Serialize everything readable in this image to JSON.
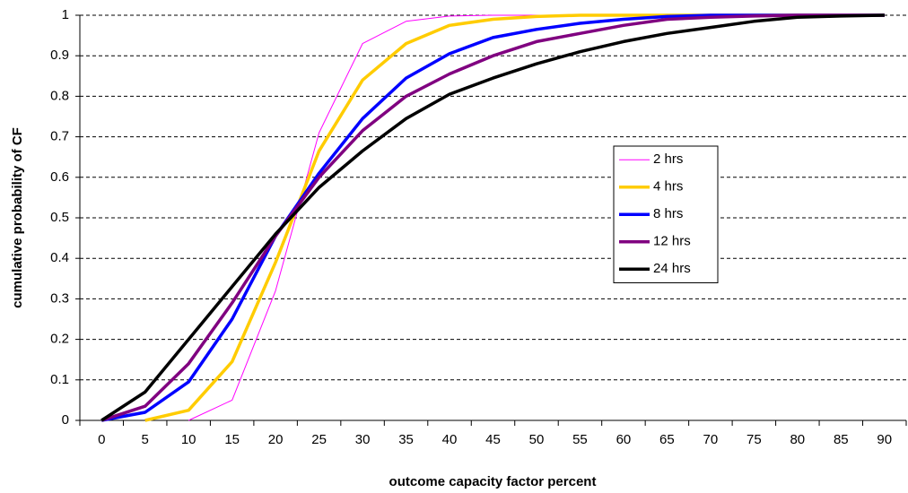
{
  "chart_data": {
    "type": "line",
    "x_label": "outcome capacity factor percent",
    "y_label": "cumulative probability of CF",
    "categories": [
      "0",
      "5",
      "10",
      "15",
      "20",
      "25",
      "30",
      "35",
      "40",
      "45",
      "50",
      "55",
      "60",
      "65",
      "70",
      "75",
      "80",
      "85",
      "90"
    ],
    "ylim": [
      0,
      1
    ],
    "yticks": [
      0,
      0.1,
      0.2,
      0.3,
      0.4,
      0.5,
      0.6,
      0.7,
      0.8,
      0.9,
      1
    ],
    "grid": true,
    "legend": "right",
    "series": [
      {
        "name": "2 hrs",
        "color": "#ff00ff",
        "values": [
          null,
          null,
          0,
          0.05,
          0.32,
          0.71,
          0.93,
          0.985,
          0.998,
          1,
          1,
          1,
          1,
          1,
          1,
          1,
          1,
          1,
          1
        ]
      },
      {
        "name": "4 hrs",
        "color": "#ffcc00",
        "values": [
          null,
          0,
          0.025,
          0.145,
          0.39,
          0.665,
          0.84,
          0.93,
          0.975,
          0.99,
          0.997,
          1,
          1,
          1,
          1,
          1,
          1,
          1,
          1
        ]
      },
      {
        "name": "8 hrs",
        "color": "#0000ff",
        "values": [
          0,
          0.02,
          0.095,
          0.25,
          0.455,
          0.61,
          0.745,
          0.845,
          0.905,
          0.945,
          0.965,
          0.98,
          0.99,
          0.997,
          1,
          1,
          1,
          1,
          1
        ]
      },
      {
        "name": "12 hrs",
        "color": "#800080",
        "values": [
          0,
          0.035,
          0.14,
          0.29,
          0.455,
          0.6,
          0.715,
          0.8,
          0.855,
          0.9,
          0.935,
          0.955,
          0.975,
          0.99,
          0.995,
          0.998,
          1,
          1,
          1
        ]
      },
      {
        "name": "24 hrs",
        "color": "#000000",
        "values": [
          0,
          0.07,
          0.2,
          0.33,
          0.46,
          0.575,
          0.665,
          0.745,
          0.805,
          0.845,
          0.88,
          0.91,
          0.935,
          0.955,
          0.97,
          0.985,
          0.995,
          0.998,
          1
        ]
      }
    ]
  }
}
